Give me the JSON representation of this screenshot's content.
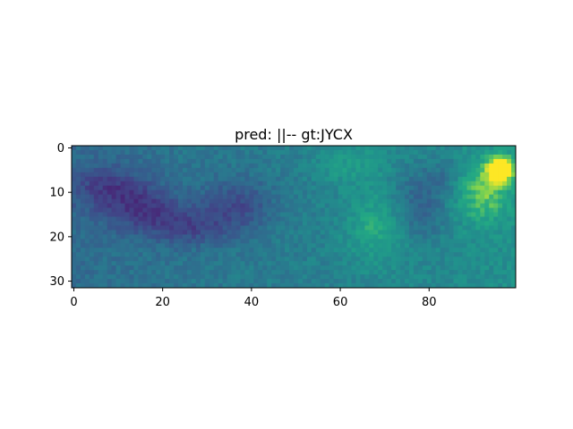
{
  "chart_data": {
    "type": "heatmap",
    "title": "pred: ||-- gt:JYCX",
    "xlabel": "",
    "ylabel": "",
    "cols": 100,
    "rows": 32,
    "xlim": [
      -0.5,
      99.5
    ],
    "ylim": [
      31.5,
      -0.5
    ],
    "x_ticks": [
      0,
      20,
      40,
      60,
      80
    ],
    "y_ticks": [
      0,
      10,
      20,
      30
    ],
    "grid": false,
    "colormap": "viridis",
    "features": [
      {
        "kind": "dark",
        "cx": 8,
        "cy": 9,
        "rx": 9,
        "ry": 5,
        "strength": 0.22
      },
      {
        "kind": "dark",
        "cx": 16,
        "cy": 14,
        "rx": 9,
        "ry": 5,
        "strength": 0.22
      },
      {
        "kind": "dark",
        "cx": 26,
        "cy": 18,
        "rx": 9,
        "ry": 4,
        "strength": 0.2
      },
      {
        "kind": "dark",
        "cx": 37,
        "cy": 13,
        "rx": 8,
        "ry": 6,
        "strength": 0.22
      },
      {
        "kind": "dark",
        "cx": 78,
        "cy": 13,
        "rx": 6,
        "ry": 8,
        "strength": 0.2
      },
      {
        "kind": "dark",
        "cx": 84,
        "cy": 6,
        "rx": 4,
        "ry": 4,
        "strength": 0.1
      },
      {
        "kind": "bright",
        "cx": 96,
        "cy": 5,
        "rx": 3,
        "ry": 3,
        "strength": 0.55
      },
      {
        "kind": "bright",
        "cx": 92,
        "cy": 10,
        "rx": 6,
        "ry": 7,
        "strength": 0.25
      },
      {
        "kind": "bright",
        "cx": 68,
        "cy": 18,
        "rx": 7,
        "ry": 8,
        "strength": 0.18
      },
      {
        "kind": "bright",
        "cx": 62,
        "cy": 4,
        "rx": 8,
        "ry": 5,
        "strength": 0.12
      }
    ]
  }
}
